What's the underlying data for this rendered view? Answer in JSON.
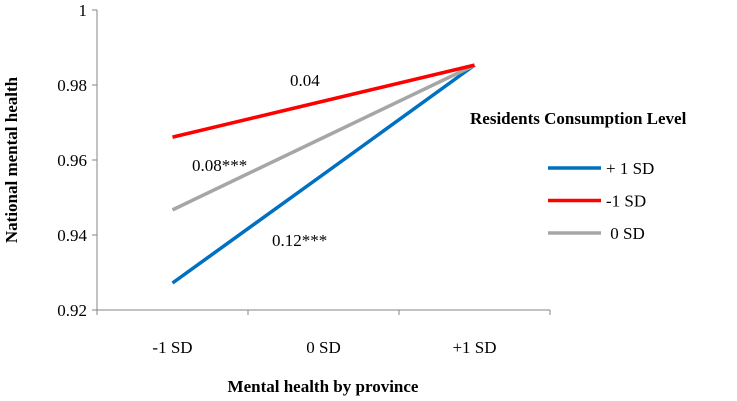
{
  "chart_data": {
    "type": "line",
    "title": "",
    "xlabel": "Mental health by province",
    "ylabel": "National mental health",
    "categories": [
      "-1 SD",
      "0 SD",
      "+1 SD"
    ],
    "ylim": [
      0.92,
      1.0
    ],
    "yticks": [
      0.92,
      0.94,
      0.96,
      0.98,
      1
    ],
    "ytick_labels": [
      "0.92",
      "0.94",
      "0.96",
      "0.98",
      "1"
    ],
    "grid": false,
    "legend": {
      "title": "Residents Consumption Level",
      "placement": "right"
    },
    "series": [
      {
        "name": "+ 1 SD",
        "color": "#0070C0",
        "values": [
          0.9272,
          0.9562,
          0.9853
        ]
      },
      {
        "name": "-1 SD",
        "color": "#FF0000",
        "values": [
          0.9661,
          0.9757,
          0.9853
        ]
      },
      {
        "name": " 0 SD",
        "color": "#A6A6A6",
        "values": [
          0.9467,
          0.966,
          0.9853
        ]
      }
    ],
    "annotations": [
      {
        "text": "0.04",
        "series": "-1 SD"
      },
      {
        "text": "0.08***",
        "series": " 0 SD"
      },
      {
        "text": "0.12***",
        "series": "+ 1 SD"
      }
    ]
  }
}
